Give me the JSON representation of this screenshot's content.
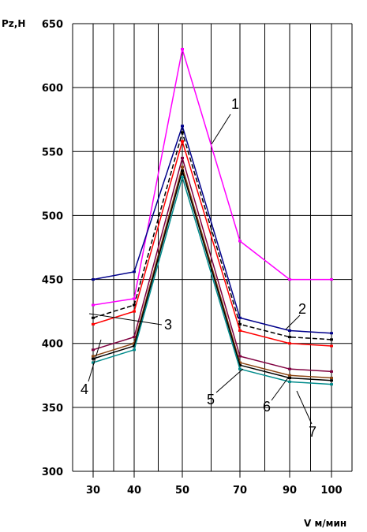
{
  "chart_data": {
    "type": "line",
    "title": "",
    "ylabel": "Pz,H",
    "xlabel": "V м/мин",
    "categories": [
      "30",
      "40",
      "50",
      "70",
      "90",
      "100"
    ],
    "ylim": [
      300,
      650
    ],
    "yticks": [
      300,
      350,
      400,
      450,
      500,
      550,
      600,
      650
    ],
    "grid": true,
    "series": [
      {
        "callout": "1",
        "color": "#ff00ff",
        "values": [
          430,
          435,
          630,
          480,
          450,
          450
        ]
      },
      {
        "callout": "",
        "color": "#00008b",
        "values": [
          450,
          456,
          570,
          420,
          410,
          408
        ]
      },
      {
        "callout": "2",
        "color": "#000000",
        "dashed": true,
        "values": [
          420,
          430,
          565,
          415,
          405,
          403
        ]
      },
      {
        "callout": "3",
        "color": "#ff0000",
        "values": [
          415,
          425,
          558,
          410,
          400,
          398
        ]
      },
      {
        "callout": "4",
        "color": "#800040",
        "values": [
          395,
          405,
          545,
          390,
          380,
          378
        ]
      },
      {
        "callout": "5",
        "color": "#8b4513",
        "values": [
          390,
          400,
          538,
          385,
          375,
          373
        ]
      },
      {
        "callout": "6",
        "color": "#000000",
        "values": [
          388,
          398,
          535,
          383,
          373,
          371
        ]
      },
      {
        "callout": "7",
        "color": "#008b8b",
        "values": [
          385,
          395,
          530,
          380,
          370,
          368
        ]
      }
    ]
  }
}
